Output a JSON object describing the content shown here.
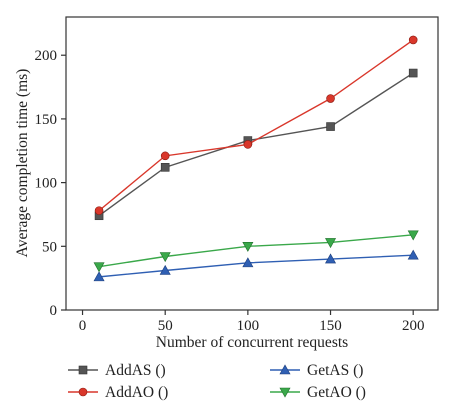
{
  "chart_data": {
    "type": "line",
    "title": "",
    "xlabel": "Number of concurrent requests",
    "ylabel": "Average completion time (ms)",
    "xlim": [
      -10,
      215
    ],
    "ylim": [
      0,
      230
    ],
    "xticks": [
      0,
      50,
      100,
      150,
      200
    ],
    "yticks": [
      0,
      50,
      100,
      150,
      200
    ],
    "grid": false,
    "legend_position": "bottom",
    "series": [
      {
        "name": "AddAS ()",
        "marker": "square",
        "color": "#555555",
        "x": [
          10,
          50,
          100,
          150,
          200
        ],
        "y": [
          74,
          112,
          133,
          144,
          186
        ]
      },
      {
        "name": "AddAO ()",
        "marker": "circle",
        "color": "#d9372b",
        "x": [
          10,
          50,
          100,
          150,
          200
        ],
        "y": [
          78,
          121,
          130,
          166,
          212
        ]
      },
      {
        "name": "GetAS ()",
        "marker": "triangle-up",
        "color": "#2f5fb3",
        "x": [
          10,
          50,
          100,
          150,
          200
        ],
        "y": [
          26,
          31,
          37,
          40,
          43
        ]
      },
      {
        "name": "GetAO ()",
        "marker": "triangle-down",
        "color": "#3aa84a",
        "x": [
          10,
          50,
          100,
          150,
          200
        ],
        "y": [
          34,
          42,
          50,
          53,
          59
        ]
      }
    ]
  }
}
